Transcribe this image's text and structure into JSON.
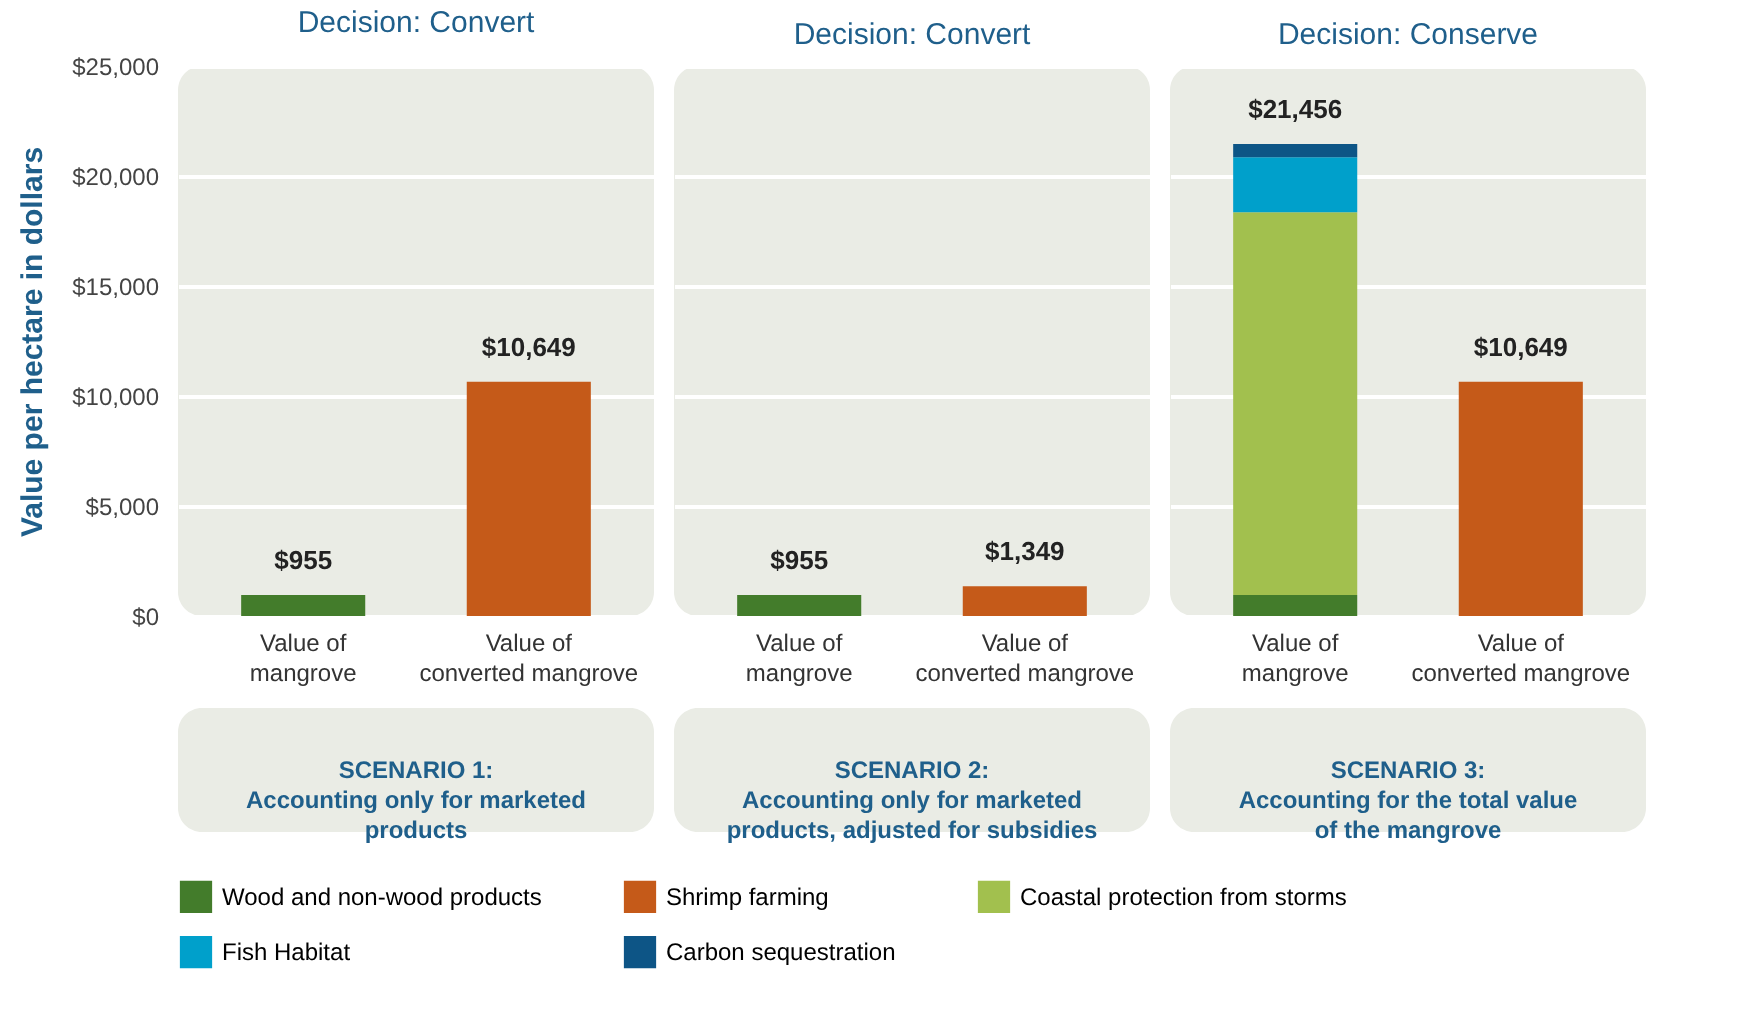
{
  "chart_data": [
    {
      "type": "bar",
      "title": "Decision: Convert",
      "ylabel": "Value per hectare in dollars",
      "categories": [
        "Value of mangrove",
        "Value of converted mangrove"
      ],
      "stacked": true,
      "series": [
        {
          "name": "Wood and non-wood products",
          "color": "#437c2b",
          "values": [
            955,
            null
          ]
        },
        {
          "name": "Shrimp farming",
          "color": "#c55a19",
          "values": [
            null,
            10649
          ]
        }
      ],
      "totals": [
        "$955",
        "$10,649"
      ],
      "ylim": [
        0,
        25000
      ],
      "yticks": [
        {
          "value": 0,
          "label": "$0"
        },
        {
          "value": 5000,
          "label": "$5,000"
        },
        {
          "value": 10000,
          "label": "$10,000"
        },
        {
          "value": 15000,
          "label": "$15,000"
        },
        {
          "value": 20000,
          "label": "$20,000"
        },
        {
          "value": 25000,
          "label": "$25,000"
        }
      ],
      "grid": "y",
      "legend": "bottom",
      "annotations": [
        "SCENARIO 1: Accounting only for marketed products"
      ]
    },
    {
      "type": "bar",
      "title": "Decision: Convert",
      "categories": [
        "Value of mangrove",
        "Value of converted mangrove"
      ],
      "stacked": true,
      "series": [
        {
          "name": "Wood and non-wood products",
          "color": "#437c2b",
          "values": [
            955,
            null
          ]
        },
        {
          "name": "Shrimp farming",
          "color": "#c55a19",
          "values": [
            null,
            1349
          ]
        }
      ],
      "totals": [
        "$955",
        "$1,349"
      ],
      "ylim": [
        0,
        25000
      ],
      "yticks": [
        0,
        5000,
        10000,
        15000,
        20000,
        25000
      ],
      "tick_labels": "x",
      "grid": "y",
      "legend": "bottom",
      "annotations": [
        "SCENARIO 2: Accounting only for marketed products, adjusted for subsidies"
      ]
    },
    {
      "type": "bar",
      "title": "Decision: Conserve",
      "categories": [
        "Value of mangrove",
        "Value of converted mangrove"
      ],
      "stacked": true,
      "series": [
        {
          "name": "Wood and non-wood products",
          "color": "#437c2b",
          "values": [
            955,
            null
          ]
        },
        {
          "name": "Coastal protection from storms",
          "color": "#a2c04e",
          "values": [
            17400,
            null
          ]
        },
        {
          "name": "Fish Habitat",
          "color": "#00a0cb",
          "values": [
            2500,
            null
          ]
        },
        {
          "name": "Carbon sequestration",
          "color": "#0d5586",
          "values": [
            601,
            null
          ]
        },
        {
          "name": "Shrimp farming",
          "color": "#c55a19",
          "values": [
            null,
            10649
          ]
        }
      ],
      "totals": [
        "$21,456",
        "$10,649"
      ],
      "ylim": [
        0,
        25000
      ],
      "yticks": [
        0,
        5000,
        10000,
        15000,
        20000,
        25000
      ],
      "tick_labels": "x",
      "grid": "y",
      "legend": "bottom",
      "annotations": [
        "SCENARIO 3: Accounting for the total value of the mangrove"
      ]
    }
  ]
}
